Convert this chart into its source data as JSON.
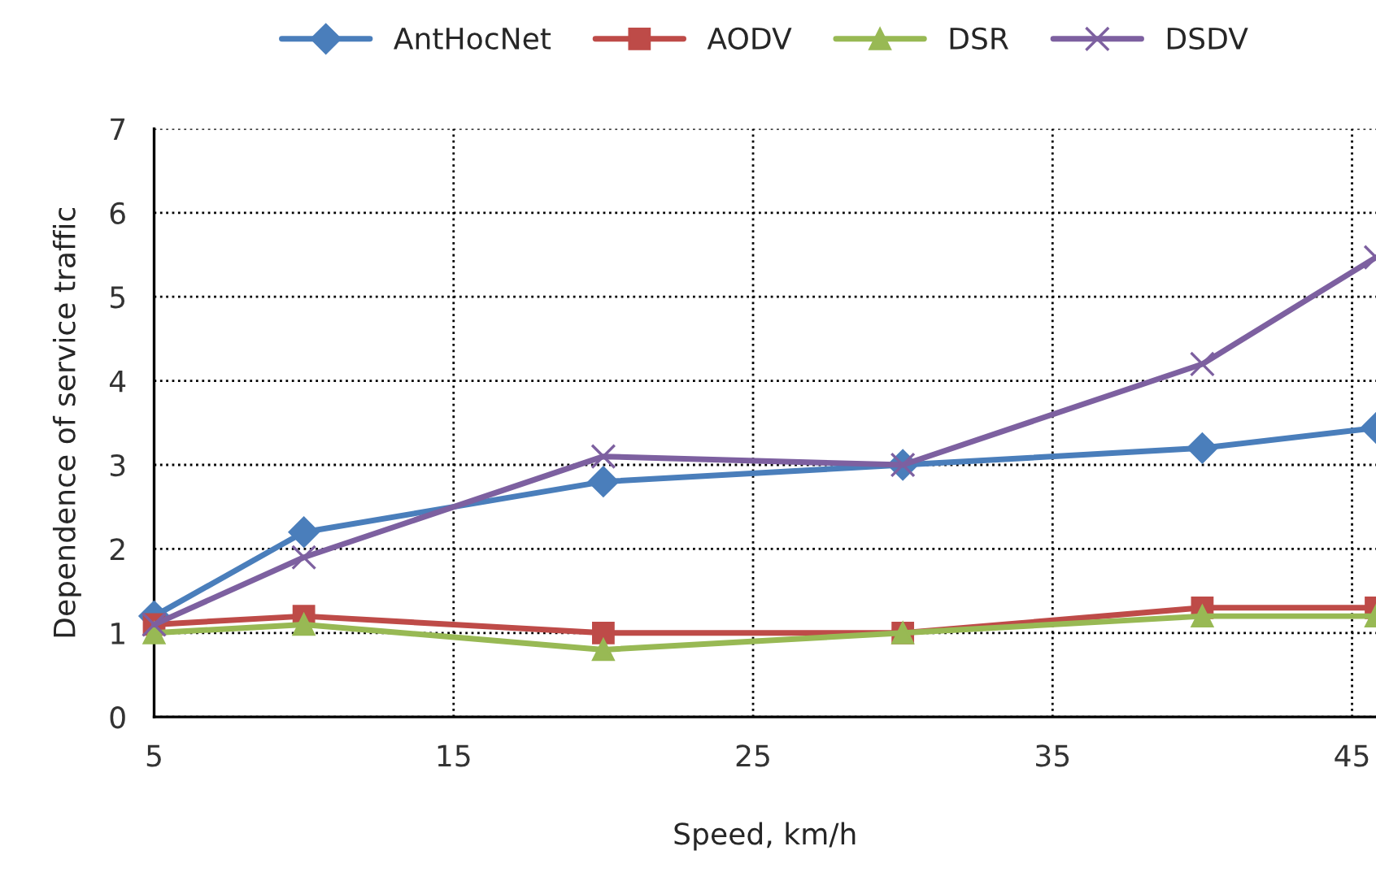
{
  "chart_data": {
    "type": "line",
    "xlabel": "Speed, km/h",
    "ylabel": "Dependence of service traffic",
    "x": [
      5,
      10,
      20,
      30,
      40,
      45.8
    ],
    "series": [
      {
        "name": "AntHocNet",
        "color": "#4a7ebb",
        "marker": "diamond",
        "values": [
          1.2,
          2.2,
          2.8,
          3.0,
          3.2,
          3.44
        ]
      },
      {
        "name": "AODV",
        "color": "#be4b48",
        "marker": "square",
        "values": [
          1.1,
          1.2,
          1.0,
          1.0,
          1.3,
          1.3
        ]
      },
      {
        "name": "DSR",
        "color": "#98b954",
        "marker": "triangle",
        "values": [
          1.0,
          1.1,
          0.8,
          1.0,
          1.2,
          1.2
        ]
      },
      {
        "name": "DSDV",
        "color": "#7d60a0",
        "marker": "cross",
        "values": [
          1.1,
          1.9,
          3.1,
          3.0,
          4.2,
          5.47
        ]
      }
    ],
    "xlim": [
      5,
      45.8
    ],
    "xticks": [
      5,
      15,
      25,
      35,
      45
    ],
    "ylim": [
      0,
      7
    ],
    "yticks": [
      0,
      1,
      2,
      3,
      4,
      5,
      6,
      7
    ],
    "grid": true,
    "legend": "top",
    "line_style": "solid"
  }
}
